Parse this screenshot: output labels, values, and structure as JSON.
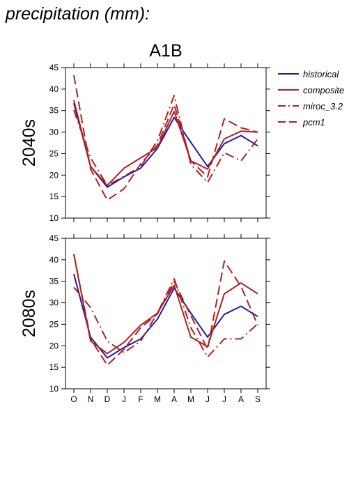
{
  "page_title": "precipitation (mm):",
  "colors": {
    "historical": "#1c1cb4",
    "model": "#b41e1e",
    "axis": "#000000"
  },
  "chart_data": [
    {
      "type": "line",
      "scenario_title": "A1B",
      "panel_label": "2040s",
      "categories": [
        "O",
        "N",
        "D",
        "J",
        "F",
        "M",
        "A",
        "M",
        "J",
        "J",
        "A",
        "S"
      ],
      "ylim": [
        10,
        45
      ],
      "yticks": [
        10,
        15,
        20,
        25,
        30,
        35,
        40,
        45
      ],
      "grid": false,
      "legend": "right",
      "series": [
        {
          "name": "historical",
          "style": "solid",
          "color": "#1c1cb4",
          "values": [
            36.7,
            22.0,
            17.2,
            19.6,
            21.6,
            26.2,
            33.4,
            27.6,
            22.0,
            27.3,
            29.2,
            26.8
          ]
        },
        {
          "name": "composite",
          "style": "solid",
          "color": "#b41e1e",
          "values": [
            37.4,
            22.0,
            17.6,
            21.6,
            24.0,
            26.4,
            34.8,
            23.3,
            21.4,
            28.4,
            30.2,
            30.0
          ]
        },
        {
          "name": "miroc_3.2",
          "style": "dashdot",
          "color": "#b41e1e",
          "values": [
            35.1,
            24.0,
            17.6,
            19.7,
            22.0,
            28.0,
            38.5,
            22.5,
            18.3,
            25.2,
            23.3,
            28.4
          ]
        },
        {
          "name": "pcm1",
          "style": "dashed",
          "color": "#b41e1e",
          "values": [
            43.2,
            21.4,
            14.2,
            16.8,
            22.6,
            27.0,
            36.4,
            23.3,
            19.6,
            33.1,
            31.0,
            30.0
          ]
        }
      ]
    },
    {
      "type": "line",
      "panel_label": "2080s",
      "categories": [
        "O",
        "N",
        "D",
        "J",
        "F",
        "M",
        "A",
        "M",
        "J",
        "J",
        "A",
        "S"
      ],
      "ylim": [
        10,
        45
      ],
      "yticks": [
        10,
        15,
        20,
        25,
        30,
        35,
        40,
        45
      ],
      "grid": false,
      "series": [
        {
          "name": "historical",
          "style": "solid",
          "color": "#1c1cb4",
          "values": [
            36.7,
            22.0,
            17.2,
            19.6,
            21.6,
            26.2,
            33.4,
            27.6,
            22.0,
            27.3,
            29.2,
            26.8
          ]
        },
        {
          "name": "composite",
          "style": "solid",
          "color": "#b41e1e",
          "values": [
            41.3,
            21.1,
            18.2,
            20.8,
            24.8,
            27.6,
            34.1,
            22.0,
            19.8,
            32.1,
            34.6,
            32.1
          ]
        },
        {
          "name": "miroc_3.2",
          "style": "dashdot",
          "color": "#b41e1e",
          "values": [
            33.6,
            28.9,
            21.1,
            18.4,
            21.1,
            27.6,
            35.6,
            24.2,
            17.4,
            21.6,
            21.6,
            25.1
          ]
        },
        {
          "name": "pcm1",
          "style": "dashed",
          "color": "#b41e1e",
          "values": [
            41.3,
            21.6,
            15.5,
            19.2,
            24.2,
            27.4,
            35.0,
            27.0,
            19.2,
            39.7,
            33.8,
            24.8
          ]
        }
      ]
    }
  ]
}
